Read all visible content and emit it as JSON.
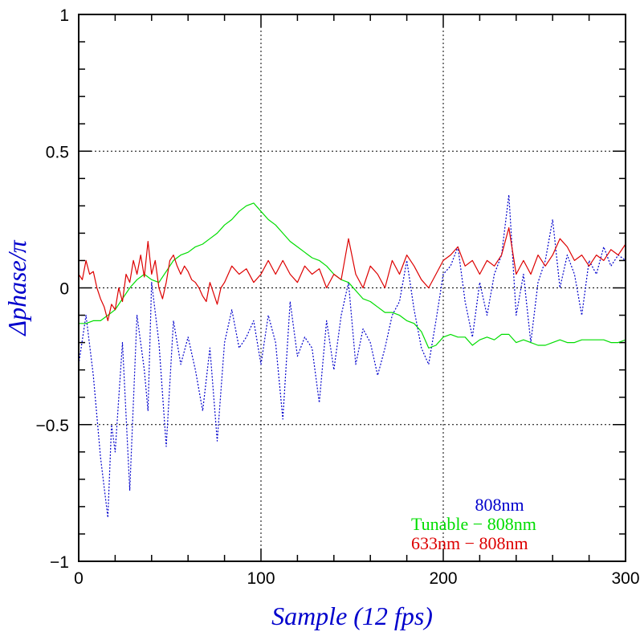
{
  "chart_data": {
    "type": "line",
    "xlabel": "Sample (12 fps)",
    "ylabel": "Δphase/π",
    "xlim": [
      0,
      300
    ],
    "ylim": [
      -1,
      1
    ],
    "xticks": [
      0,
      100,
      200,
      300
    ],
    "yticks": [
      -1,
      -0.5,
      0,
      0.5,
      1
    ],
    "xtick_labels": [
      "0",
      "100",
      "200",
      "300"
    ],
    "ytick_labels": [
      "−1",
      "−0.5",
      "0",
      "0.5",
      "1"
    ],
    "grid": "dotted at 100, 200 and -0.5, 0, 0.5",
    "legend_position": "bottom-right",
    "series": [
      {
        "name": "808nm",
        "color": "#0000cc",
        "style": "dotted",
        "x": [
          0,
          4,
          8,
          12,
          16,
          18,
          20,
          24,
          28,
          32,
          36,
          38,
          40,
          44,
          48,
          52,
          56,
          60,
          64,
          68,
          72,
          76,
          80,
          84,
          88,
          92,
          96,
          100,
          104,
          108,
          112,
          116,
          120,
          124,
          128,
          132,
          136,
          140,
          144,
          148,
          152,
          156,
          160,
          164,
          168,
          172,
          176,
          180,
          184,
          188,
          192,
          196,
          200,
          204,
          208,
          212,
          216,
          220,
          224,
          228,
          232,
          236,
          240,
          244,
          248,
          252,
          256,
          260,
          264,
          268,
          272,
          276,
          280,
          284,
          288,
          292,
          296,
          300
        ],
        "y": [
          -0.28,
          -0.1,
          -0.32,
          -0.62,
          -0.84,
          -0.5,
          -0.6,
          -0.2,
          -0.74,
          -0.1,
          -0.3,
          -0.45,
          0.02,
          -0.2,
          -0.58,
          -0.12,
          -0.28,
          -0.18,
          -0.3,
          -0.45,
          -0.22,
          -0.56,
          -0.2,
          -0.08,
          -0.22,
          -0.18,
          -0.12,
          -0.28,
          -0.1,
          -0.2,
          -0.48,
          -0.05,
          -0.25,
          -0.18,
          -0.22,
          -0.42,
          -0.12,
          -0.3,
          -0.1,
          0.02,
          -0.28,
          -0.15,
          -0.2,
          -0.32,
          -0.22,
          -0.1,
          -0.05,
          0.1,
          -0.08,
          -0.22,
          -0.28,
          -0.12,
          0.05,
          0.08,
          0.15,
          -0.05,
          -0.18,
          0.02,
          -0.1,
          0.05,
          0.12,
          0.34,
          -0.1,
          0.05,
          -0.2,
          0.02,
          0.1,
          0.25,
          0.0,
          0.12,
          0.05,
          -0.1,
          0.1,
          0.05,
          0.15,
          0.08,
          0.12,
          0.1
        ]
      },
      {
        "name": "Tunable − 808nm",
        "color": "#00dd00",
        "style": "solid",
        "x": [
          0,
          4,
          8,
          12,
          16,
          20,
          24,
          28,
          32,
          36,
          40,
          44,
          48,
          52,
          56,
          60,
          64,
          68,
          72,
          76,
          80,
          84,
          88,
          92,
          96,
          100,
          104,
          108,
          112,
          116,
          120,
          124,
          128,
          132,
          136,
          140,
          144,
          148,
          152,
          156,
          160,
          164,
          168,
          172,
          176,
          180,
          184,
          188,
          192,
          196,
          200,
          204,
          208,
          212,
          216,
          220,
          224,
          228,
          232,
          236,
          240,
          244,
          248,
          252,
          256,
          260,
          264,
          268,
          272,
          276,
          280,
          284,
          288,
          292,
          296,
          300
        ],
        "y": [
          -0.13,
          -0.13,
          -0.12,
          -0.12,
          -0.1,
          -0.08,
          -0.04,
          0.0,
          0.03,
          0.05,
          0.03,
          0.02,
          0.06,
          0.1,
          0.12,
          0.13,
          0.15,
          0.16,
          0.18,
          0.2,
          0.23,
          0.25,
          0.28,
          0.3,
          0.31,
          0.28,
          0.25,
          0.23,
          0.2,
          0.17,
          0.15,
          0.13,
          0.11,
          0.1,
          0.08,
          0.05,
          0.03,
          0.02,
          -0.01,
          -0.04,
          -0.05,
          -0.07,
          -0.09,
          -0.09,
          -0.1,
          -0.12,
          -0.13,
          -0.16,
          -0.22,
          -0.21,
          -0.18,
          -0.17,
          -0.18,
          -0.18,
          -0.21,
          -0.19,
          -0.18,
          -0.19,
          -0.17,
          -0.17,
          -0.2,
          -0.19,
          -0.2,
          -0.21,
          -0.21,
          -0.2,
          -0.19,
          -0.2,
          -0.2,
          -0.19,
          -0.19,
          -0.19,
          -0.19,
          -0.2,
          -0.2,
          -0.19
        ]
      },
      {
        "name": "633nm − 808nm",
        "color": "#dd0000",
        "style": "solid",
        "x": [
          0,
          2,
          4,
          6,
          8,
          10,
          12,
          14,
          16,
          18,
          20,
          22,
          24,
          26,
          28,
          30,
          32,
          34,
          36,
          38,
          40,
          42,
          44,
          46,
          48,
          50,
          52,
          54,
          56,
          58,
          60,
          62,
          64,
          66,
          68,
          70,
          72,
          74,
          76,
          78,
          80,
          84,
          88,
          92,
          96,
          100,
          104,
          108,
          112,
          116,
          120,
          124,
          128,
          132,
          136,
          140,
          144,
          148,
          152,
          156,
          160,
          164,
          168,
          172,
          176,
          180,
          184,
          188,
          192,
          196,
          200,
          204,
          208,
          212,
          216,
          220,
          224,
          228,
          232,
          236,
          240,
          244,
          248,
          252,
          256,
          260,
          264,
          268,
          272,
          276,
          280,
          284,
          288,
          292,
          296,
          300
        ],
        "y": [
          0.05,
          0.03,
          0.1,
          0.05,
          0.06,
          0.0,
          -0.04,
          -0.07,
          -0.12,
          -0.06,
          -0.08,
          0.0,
          -0.05,
          0.05,
          0.02,
          0.1,
          0.05,
          0.12,
          0.04,
          0.17,
          0.05,
          0.1,
          0.0,
          -0.04,
          0.02,
          0.1,
          0.12,
          0.08,
          0.05,
          0.08,
          0.06,
          0.03,
          0.02,
          0.0,
          -0.03,
          -0.05,
          0.02,
          -0.02,
          -0.06,
          0.0,
          0.02,
          0.08,
          0.05,
          0.07,
          0.02,
          0.05,
          0.1,
          0.05,
          0.1,
          0.05,
          0.02,
          0.08,
          0.05,
          0.07,
          0.0,
          0.05,
          0.03,
          0.18,
          0.05,
          0.0,
          0.08,
          0.05,
          0.0,
          0.1,
          0.05,
          0.12,
          0.08,
          0.03,
          0.0,
          0.05,
          0.1,
          0.12,
          0.15,
          0.08,
          0.1,
          0.05,
          0.1,
          0.08,
          0.12,
          0.22,
          0.05,
          0.1,
          0.05,
          0.12,
          0.08,
          0.12,
          0.18,
          0.15,
          0.1,
          0.12,
          0.08,
          0.12,
          0.1,
          0.14,
          0.12,
          0.16
        ]
      }
    ]
  }
}
